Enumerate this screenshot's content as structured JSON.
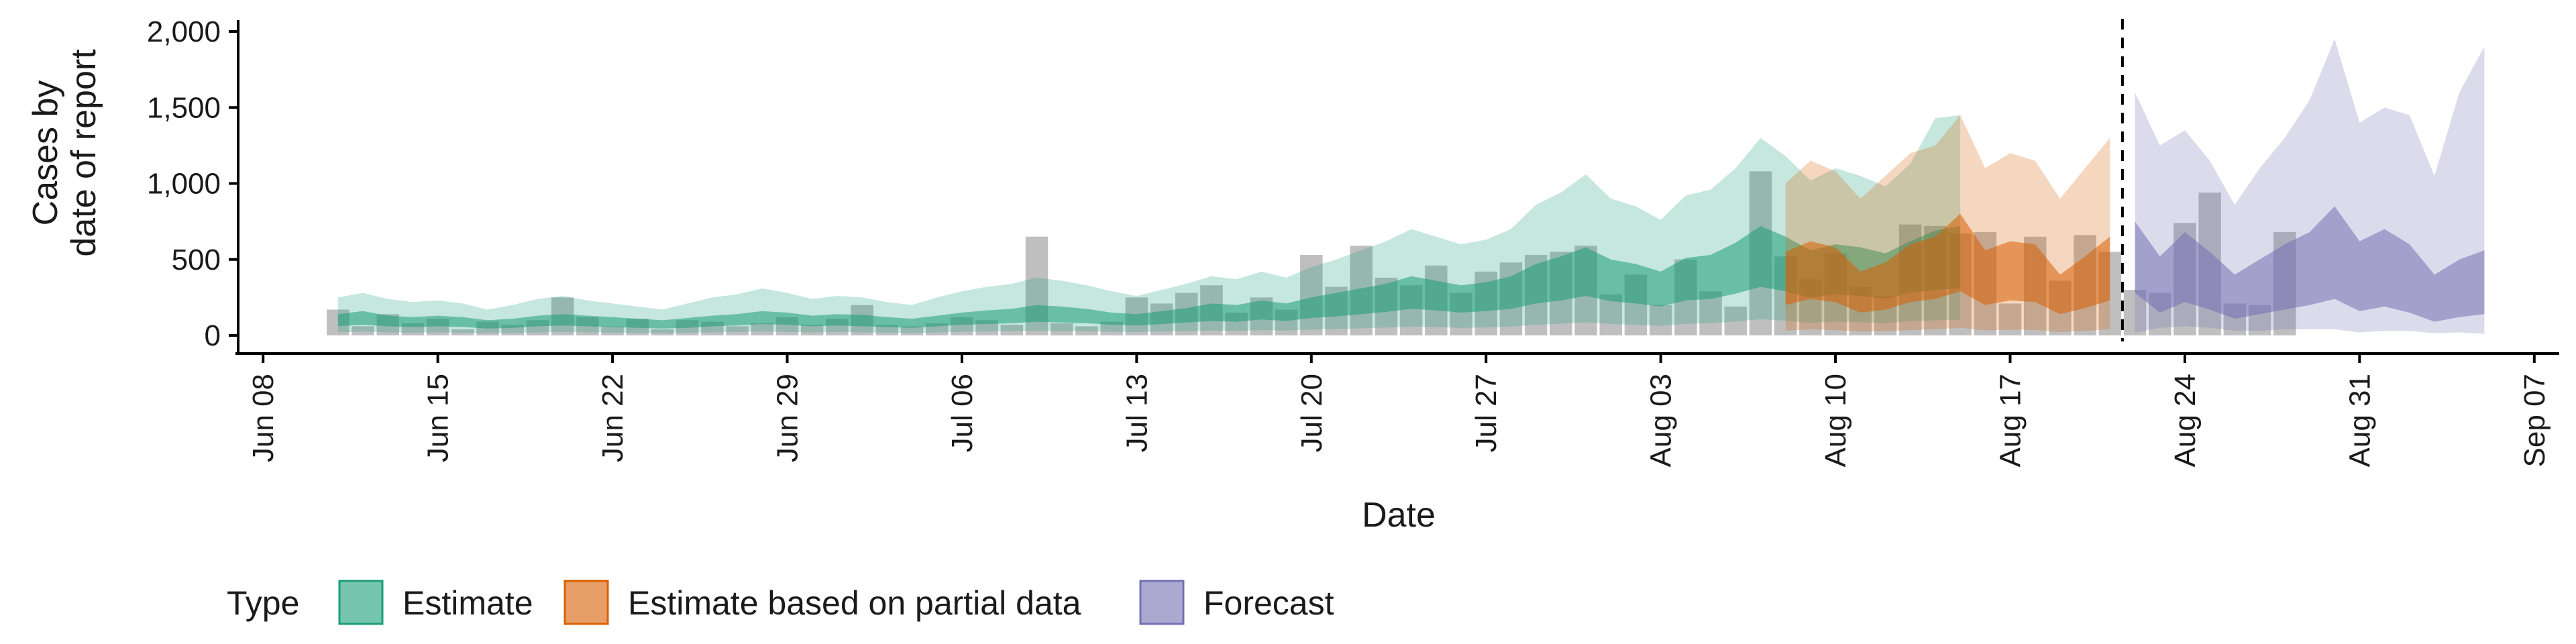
{
  "chart_data": {
    "type": "area",
    "title": "",
    "xlabel": "Date",
    "ylabel_lines": [
      "Cases by",
      "date of report"
    ],
    "ylim": [
      0,
      2000
    ],
    "yticks": [
      0,
      500,
      1000,
      1500,
      2000
    ],
    "ytick_labels": [
      "0",
      "500",
      "1,000",
      "1,500",
      "2,000"
    ],
    "x_start": "2020-06-07",
    "xlim": [
      "2020-06-07",
      "2020-09-08"
    ],
    "xticks": [
      "2020-06-08",
      "2020-06-15",
      "2020-06-22",
      "2020-06-29",
      "2020-07-06",
      "2020-07-13",
      "2020-07-20",
      "2020-07-27",
      "2020-08-03",
      "2020-08-10",
      "2020-08-17",
      "2020-08-24",
      "2020-08-31",
      "2020-09-07"
    ],
    "xtick_labels": [
      "Jun 08",
      "Jun 15",
      "Jun 22",
      "Jun 29",
      "Jul 06",
      "Jul 13",
      "Jul 20",
      "Jul 27",
      "Aug 03",
      "Aug 10",
      "Aug 17",
      "Aug 24",
      "Aug 31",
      "Sep 07"
    ],
    "vline_date": "2020-08-21",
    "legend_title": "Type",
    "legend_position": "bottom",
    "grid": false,
    "colors": {
      "estimate": "#1b9e77",
      "partial": "#d95f02",
      "forecast": "#7570b3",
      "bars": "#7f7f7f"
    },
    "bars": {
      "start": "2020-06-11",
      "values": [
        170,
        60,
        140,
        80,
        110,
        40,
        90,
        70,
        100,
        250,
        120,
        60,
        110,
        40,
        100,
        90,
        60,
        80,
        120,
        70,
        110,
        200,
        70,
        60,
        80,
        120,
        100,
        70,
        650,
        80,
        60,
        90,
        250,
        210,
        280,
        330,
        150,
        250,
        170,
        530,
        320,
        590,
        380,
        330,
        460,
        280,
        420,
        480,
        530,
        550,
        590,
        270,
        400,
        200,
        500,
        290,
        190,
        1080,
        520,
        370,
        540,
        320,
        260,
        730,
        720,
        670,
        680,
        210,
        650,
        360,
        660,
        550,
        300,
        280,
        740,
        940,
        210,
        200,
        680
      ]
    },
    "series": [
      {
        "name": "Estimate",
        "start": "2020-06-11",
        "outer_upper": [
          250,
          280,
          240,
          220,
          230,
          210,
          170,
          200,
          240,
          260,
          230,
          210,
          190,
          170,
          210,
          250,
          270,
          310,
          280,
          240,
          260,
          250,
          220,
          200,
          250,
          290,
          320,
          340,
          380,
          360,
          330,
          290,
          260,
          300,
          340,
          390,
          370,
          420,
          380,
          450,
          500,
          560,
          620,
          700,
          650,
          600,
          630,
          700,
          860,
          940,
          1060,
          900,
          850,
          760,
          920,
          960,
          1100,
          1300,
          1180,
          1020,
          1100,
          1050,
          980,
          1130,
          1430,
          1450
        ],
        "inner_upper": [
          140,
          160,
          130,
          120,
          130,
          120,
          100,
          110,
          130,
          140,
          130,
          120,
          110,
          100,
          115,
          130,
          140,
          160,
          150,
          130,
          140,
          135,
          120,
          110,
          130,
          150,
          165,
          175,
          200,
          190,
          175,
          150,
          140,
          160,
          180,
          210,
          200,
          230,
          210,
          250,
          280,
          310,
          340,
          390,
          360,
          330,
          350,
          390,
          470,
          520,
          580,
          500,
          470,
          420,
          510,
          530,
          610,
          720,
          650,
          560,
          600,
          580,
          540,
          620,
          690,
          720
        ],
        "inner_lower": [
          60,
          70,
          60,
          55,
          60,
          55,
          45,
          50,
          60,
          65,
          60,
          55,
          50,
          45,
          50,
          60,
          65,
          75,
          70,
          60,
          65,
          60,
          55,
          50,
          60,
          70,
          75,
          80,
          90,
          85,
          80,
          70,
          65,
          75,
          85,
          95,
          90,
          105,
          95,
          115,
          125,
          140,
          155,
          175,
          165,
          150,
          160,
          175,
          210,
          230,
          260,
          225,
          210,
          190,
          230,
          240,
          275,
          320,
          290,
          250,
          270,
          260,
          240,
          280,
          300,
          310
        ],
        "outer_lower": [
          20,
          25,
          20,
          18,
          20,
          18,
          15,
          16,
          20,
          22,
          20,
          18,
          16,
          15,
          17,
          20,
          22,
          25,
          23,
          20,
          22,
          20,
          18,
          16,
          20,
          23,
          25,
          27,
          30,
          28,
          27,
          23,
          22,
          25,
          28,
          32,
          30,
          35,
          32,
          38,
          42,
          47,
          52,
          58,
          55,
          50,
          53,
          58,
          70,
          77,
          87,
          75,
          70,
          63,
          77,
          80,
          92,
          107,
          97,
          83,
          90,
          87,
          80,
          93,
          100,
          103
        ]
      },
      {
        "name": "Estimate based on partial data",
        "start": "2020-08-08",
        "outer_upper": [
          1000,
          1150,
          1080,
          900,
          1050,
          1200,
          1250,
          1450,
          1100,
          1200,
          1150,
          900,
          1100,
          1300
        ],
        "inner_upper": [
          550,
          620,
          580,
          420,
          480,
          600,
          650,
          800,
          560,
          620,
          600,
          400,
          520,
          650
        ],
        "inner_lower": [
          200,
          240,
          220,
          150,
          170,
          220,
          240,
          290,
          200,
          230,
          220,
          140,
          180,
          230
        ],
        "outer_lower": [
          30,
          40,
          35,
          25,
          28,
          35,
          40,
          50,
          33,
          38,
          36,
          22,
          30,
          40
        ]
      },
      {
        "name": "Forecast",
        "start": "2020-08-22",
        "outer_upper": [
          1600,
          1250,
          1350,
          1150,
          860,
          1100,
          1300,
          1550,
          1950,
          1400,
          1500,
          1450,
          1050,
          1600,
          1900
        ],
        "inner_upper": [
          750,
          520,
          680,
          550,
          400,
          500,
          600,
          680,
          850,
          620,
          700,
          600,
          400,
          500,
          560
        ],
        "inner_lower": [
          280,
          150,
          220,
          170,
          110,
          140,
          170,
          200,
          240,
          160,
          190,
          150,
          90,
          120,
          140
        ],
        "outer_lower": [
          20,
          50,
          60,
          50,
          30,
          30,
          40,
          40,
          40,
          20,
          30,
          30,
          15,
          20,
          10
        ]
      }
    ]
  }
}
